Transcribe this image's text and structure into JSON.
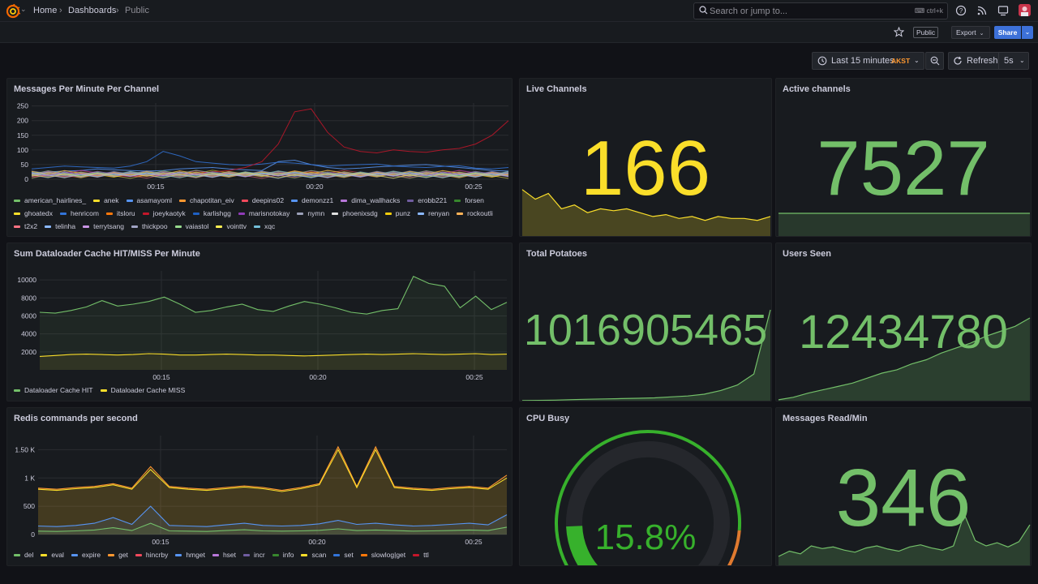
{
  "nav": {
    "breadcrumbs": [
      "Home",
      "Dashboards",
      "Public"
    ],
    "search_placeholder": "Search or jump to...",
    "search_shortcut": "ctrl+k"
  },
  "toolbar": {
    "public_tag": "Public",
    "export_label": "Export",
    "share_label": "Share",
    "time_range": "Last 15 minutes",
    "timezone": "AKST",
    "refresh_label": "Refresh",
    "refresh_interval": "5s"
  },
  "colors": {
    "green": "#73bf69",
    "yellow": "#fade2a",
    "orange": "#ff9830",
    "red": "#f2495c",
    "blue": "#5794f2",
    "bg": "#111217",
    "panel": "#181b1f"
  },
  "panels": {
    "messages": {
      "title": "Messages Per Minute Per Channel",
      "legend": [
        {
          "name": "american_hairlines_",
          "color": "#73bf69"
        },
        {
          "name": "anek",
          "color": "#fade2a"
        },
        {
          "name": "asamayoml",
          "color": "#5794f2"
        },
        {
          "name": "chapotitan_eiv",
          "color": "#ff9830"
        },
        {
          "name": "deepins02",
          "color": "#f2495c"
        },
        {
          "name": "demonzz1",
          "color": "#5794f2"
        },
        {
          "name": "dima_wallhacks",
          "color": "#b877d9"
        },
        {
          "name": "erobb221",
          "color": "#705da0"
        },
        {
          "name": "forsen",
          "color": "#37872d"
        },
        {
          "name": "ghoatedx",
          "color": "#fade2a"
        },
        {
          "name": "henricom",
          "color": "#3274d9"
        },
        {
          "name": "itsloru",
          "color": "#ff780a"
        },
        {
          "name": "joeykaotyk",
          "color": "#c4162a"
        },
        {
          "name": "karlishgg",
          "color": "#1f60c4"
        },
        {
          "name": "marisnotokay",
          "color": "#8f3bb8"
        },
        {
          "name": "nymn",
          "color": "#9ba0b8"
        },
        {
          "name": "phoenixsdg",
          "color": "#e0e0e0"
        },
        {
          "name": "punz",
          "color": "#f2cc0c"
        },
        {
          "name": "renyan",
          "color": "#8ab8ff"
        },
        {
          "name": "rockoutli",
          "color": "#ffb357"
        },
        {
          "name": "t2x2",
          "color": "#ff7383"
        },
        {
          "name": "telinha",
          "color": "#8ab8ff"
        },
        {
          "name": "terrytsang",
          "color": "#ca95e5"
        },
        {
          "name": "thickpoo",
          "color": "#a0a3c4"
        },
        {
          "name": "vaiastol",
          "color": "#96d98d"
        },
        {
          "name": "vointtv",
          "color": "#ffee52"
        },
        {
          "name": "xqc",
          "color": "#73bfd9"
        }
      ]
    },
    "dataloader": {
      "title": "Sum Dataloader Cache HIT/MISS Per Minute",
      "legend": [
        {
          "name": "Dataloader Cache HIT",
          "color": "#73bf69"
        },
        {
          "name": "Dataloader Cache MISS",
          "color": "#fade2a"
        }
      ]
    },
    "redis": {
      "title": "Redis commands per second",
      "legend": [
        {
          "name": "del",
          "color": "#73bf69"
        },
        {
          "name": "eval",
          "color": "#fade2a"
        },
        {
          "name": "expire",
          "color": "#5794f2"
        },
        {
          "name": "get",
          "color": "#ff9830"
        },
        {
          "name": "hincrby",
          "color": "#f2495c"
        },
        {
          "name": "hmget",
          "color": "#5794f2"
        },
        {
          "name": "hset",
          "color": "#b877d9"
        },
        {
          "name": "incr",
          "color": "#705da0"
        },
        {
          "name": "info",
          "color": "#37872d"
        },
        {
          "name": "scan",
          "color": "#fade2a"
        },
        {
          "name": "set",
          "color": "#3274d9"
        },
        {
          "name": "slowlog|get",
          "color": "#ff780a"
        },
        {
          "name": "ttl",
          "color": "#c4162a"
        }
      ]
    },
    "live_channels": {
      "title": "Live Channels",
      "value": "166"
    },
    "active_channels": {
      "title": "Active channels",
      "value": "7527"
    },
    "total_potatoes": {
      "title": "Total Potatoes",
      "value": "1016905465"
    },
    "users_seen": {
      "title": "Users Seen",
      "value": "12434780"
    },
    "cpu_busy": {
      "title": "CPU Busy",
      "value": "15.8%",
      "percent": 15.8
    },
    "messages_read": {
      "title": "Messages Read/Min",
      "value": "346"
    }
  },
  "chart_data": [
    {
      "type": "line",
      "title": "Messages Per Minute Per Channel",
      "x_ticks": [
        "00:15",
        "00:20",
        "00:25"
      ],
      "y_ticks": [
        0,
        50,
        100,
        150,
        200,
        250
      ],
      "ylim": [
        0,
        260
      ],
      "highlighted_series": [
        {
          "name": "joeykaotyk",
          "values": [
            10,
            12,
            8,
            10,
            15,
            12,
            10,
            12,
            15,
            18,
            20,
            25,
            30,
            40,
            60,
            120,
            230,
            240,
            160,
            110,
            95,
            90,
            100,
            95,
            92,
            100,
            105,
            120,
            150,
            200
          ]
        },
        {
          "name": "henricom",
          "values": [
            35,
            40,
            45,
            42,
            40,
            38,
            45,
            60,
            95,
            80,
            60,
            55,
            50,
            48,
            52,
            58,
            55,
            50,
            45,
            48,
            50,
            52,
            45,
            42,
            40,
            44,
            46,
            38,
            35,
            40
          ]
        },
        {
          "name": "asamayoml",
          "values": [
            20,
            25,
            28,
            30,
            35,
            32,
            30,
            28,
            30,
            35,
            38,
            40,
            35,
            32,
            30,
            60,
            65,
            50,
            40,
            35,
            38,
            42,
            45,
            48,
            50,
            45,
            40,
            35,
            30,
            28
          ]
        }
      ]
    },
    {
      "type": "line",
      "title": "Sum Dataloader Cache HIT/MISS Per Minute",
      "x_ticks": [
        "00:15",
        "00:20",
        "00:25"
      ],
      "y_ticks": [
        2000,
        4000,
        6000,
        8000,
        10000
      ],
      "ylim": [
        0,
        11000
      ],
      "series": [
        {
          "name": "Dataloader Cache HIT",
          "values": [
            6400,
            6300,
            6600,
            7000,
            7700,
            7100,
            7300,
            7600,
            8100,
            7300,
            6400,
            6600,
            7000,
            7300,
            6700,
            6500,
            7100,
            7600,
            7300,
            6900,
            6400,
            6200,
            6600,
            6800,
            10400,
            9600,
            9300,
            6900,
            8200,
            6700,
            7500
          ]
        },
        {
          "name": "Dataloader Cache MISS",
          "values": [
            1500,
            1600,
            1700,
            1750,
            1700,
            1650,
            1700,
            1800,
            1750,
            1650,
            1650,
            1700,
            1750,
            1700,
            1650,
            1650,
            1600,
            1550,
            1600,
            1650,
            1700,
            1750,
            1700,
            1750,
            1800,
            1750,
            1700,
            1750,
            1800,
            1700,
            1750
          ]
        }
      ]
    },
    {
      "type": "area",
      "title": "Redis commands per second",
      "x_ticks": [
        "00:15",
        "00:20",
        "00:25"
      ],
      "y_ticks": [
        "0",
        "500",
        "1 K",
        "1.50 K"
      ],
      "ylim": [
        0,
        1750
      ],
      "series": [
        {
          "name": "get",
          "values": [
            820,
            800,
            830,
            850,
            900,
            820,
            1200,
            850,
            820,
            800,
            830,
            860,
            830,
            780,
            830,
            900,
            1550,
            850,
            1550,
            850,
            820,
            800,
            830,
            850,
            820,
            1050
          ]
        },
        {
          "name": "eval",
          "values": [
            800,
            780,
            810,
            830,
            880,
            800,
            1150,
            830,
            800,
            780,
            810,
            840,
            810,
            760,
            810,
            880,
            1500,
            830,
            1500,
            830,
            800,
            780,
            810,
            830,
            800,
            1000
          ]
        },
        {
          "name": "hmget",
          "values": [
            150,
            140,
            160,
            200,
            300,
            180,
            500,
            160,
            150,
            140,
            170,
            200,
            160,
            150,
            160,
            190,
            250,
            180,
            200,
            170,
            150,
            160,
            180,
            200,
            170,
            350
          ]
        },
        {
          "name": "del",
          "values": [
            60,
            55,
            65,
            80,
            120,
            70,
            200,
            65,
            60,
            55,
            70,
            85,
            65,
            60,
            65,
            75,
            100,
            70,
            80,
            70,
            60,
            65,
            70,
            80,
            70,
            130
          ]
        }
      ]
    },
    {
      "type": "area",
      "title": "Live Channels",
      "values": [
        180,
        175,
        178,
        170,
        172,
        168,
        170,
        169,
        170,
        168,
        166,
        167,
        165,
        166,
        164,
        166,
        165,
        165,
        164,
        166
      ],
      "value_label": "166"
    },
    {
      "type": "area",
      "title": "Total Potatoes",
      "values": [
        1,
        1.2,
        1.5,
        2,
        2.5,
        2.8,
        3.2,
        3.5,
        4,
        5,
        6,
        8,
        12,
        18,
        30,
        100
      ]
    },
    {
      "type": "area",
      "title": "Users Seen",
      "values": [
        2,
        5,
        10,
        14,
        18,
        22,
        28,
        34,
        38,
        45,
        50,
        58,
        64,
        70,
        78,
        84,
        90,
        100
      ]
    },
    {
      "type": "area",
      "title": "Messages Read/Min",
      "values": [
        300,
        310,
        305,
        320,
        315,
        318,
        312,
        308,
        316,
        320,
        314,
        310,
        318,
        322,
        316,
        312,
        320,
        380,
        330,
        320,
        326,
        318,
        328,
        360
      ]
    }
  ]
}
